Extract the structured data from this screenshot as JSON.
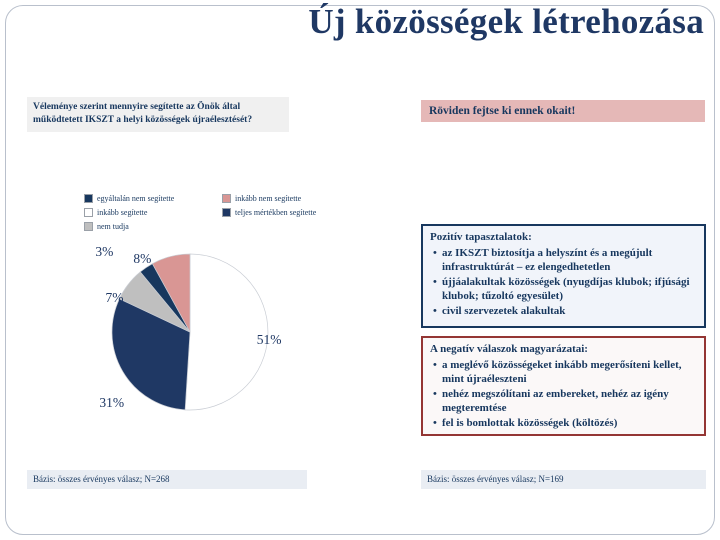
{
  "slide": {
    "title": "Új közösségek létrehozása",
    "question": "Véleménye szerint mennyire segítette az Önök által működtetett IKSZT a helyi közösségek újraélesztését?",
    "prompt": "Röviden fejtse ki ennek okait!",
    "positive": {
      "heading": "Pozitív tapasztalatok:",
      "bullets": [
        "az IKSZT biztosítja a helyszínt és a megújult infrastruktúrát – ez elengedhetetlen",
        "újjáalakultak közösségek (nyugdíjas klubok; ifjúsági klubok; tűzoltó egyesület)",
        "civil szervezetek alakultak"
      ]
    },
    "negative": {
      "heading": "A negatív válaszok magyarázatai:",
      "bullets": [
        "a meglévő közösségeket inkább megerősíteni kellet, mint újraéleszteni",
        "nehéz megszólítani az embereket, nehéz az igény megteremtése",
        "fel is bomlottak közösségek (költözés)"
      ]
    },
    "basis_left": "Bázis: összes érvényes válasz; N=268",
    "basis_right": "Bázis: összes érvényes válasz; N=169"
  },
  "colors": {
    "title_navy": "#1F3864",
    "accent_navy": "#17375E",
    "accent_rose": "#D99694",
    "prompt_box_bg": "#E5B8B7",
    "negative_border": "#943634",
    "question_box_bg": "#F0F0F0",
    "basis_box_bg": "#E9EDF3",
    "neutral_gray": "#BFBFBF"
  },
  "chart_data": {
    "type": "pie",
    "title": "",
    "start_angle_deg": 0,
    "direction": "clockwise",
    "legend_position": "top",
    "value_suffix": "%",
    "slices": [
      {
        "label": "inkább segítette",
        "value": 51,
        "color": "#FFFFFF",
        "label_angle": 96,
        "label_r": 1.02
      },
      {
        "label": "teljes mértékben segítette",
        "value": 31,
        "color": "#1F3864",
        "label_angle": 228,
        "label_r": 1.35
      },
      {
        "label": "nem tudja",
        "value": 7,
        "color": "#BFBFBF",
        "label_angle": 294,
        "label_r": 1.06
      },
      {
        "label": "egyáltalán nem segítette",
        "value": 3,
        "color": "#17375E",
        "label_angle": 313,
        "label_r": 1.5
      },
      {
        "label": "inkább nem segítette",
        "value": 8,
        "color": "#D99694",
        "label_angle": 327,
        "label_r": 1.12
      }
    ],
    "legend_columns": [
      [
        "egyáltalán nem segítette",
        "inkább segítette",
        "nem tudja"
      ],
      [
        "inkább nem segítette",
        "teljes mértékben segítette"
      ]
    ]
  }
}
